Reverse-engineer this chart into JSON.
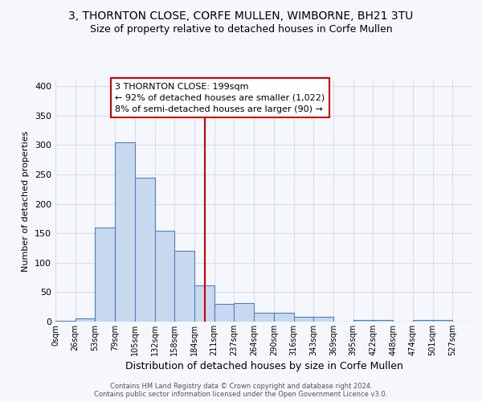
{
  "title_line1": "3, THORNTON CLOSE, CORFE MULLEN, WIMBORNE, BH21 3TU",
  "title_line2": "Size of property relative to detached houses in Corfe Mullen",
  "xlabel": "Distribution of detached houses by size in Corfe Mullen",
  "ylabel": "Number of detached properties",
  "footer_line1": "Contains HM Land Registry data © Crown copyright and database right 2024.",
  "footer_line2": "Contains public sector information licensed under the Open Government Licence v3.0.",
  "bin_labels": [
    "0sqm",
    "26sqm",
    "53sqm",
    "79sqm",
    "105sqm",
    "132sqm",
    "158sqm",
    "184sqm",
    "211sqm",
    "237sqm",
    "264sqm",
    "290sqm",
    "316sqm",
    "343sqm",
    "369sqm",
    "395sqm",
    "422sqm",
    "448sqm",
    "474sqm",
    "501sqm",
    "527sqm"
  ],
  "bar_values": [
    2,
    5,
    160,
    305,
    244,
    155,
    120,
    62,
    30,
    32,
    15,
    15,
    8,
    8,
    0,
    3,
    3,
    0,
    3,
    3,
    0
  ],
  "bar_color": "#c8d8ef",
  "bar_edge_color": "#4f7fbe",
  "vline_color": "#cc0000",
  "annotation_line1": "3 THORNTON CLOSE: 199sqm",
  "annotation_line2": "← 92% of detached houses are smaller (1,022)",
  "annotation_line3": "8% of semi-detached houses are larger (90) →",
  "annotation_box_facecolor": "#ffffff",
  "annotation_box_edgecolor": "#cc0000",
  "ylim": [
    0,
    410
  ],
  "yticks": [
    0,
    50,
    100,
    150,
    200,
    250,
    300,
    350,
    400
  ],
  "bg_color": "#f5f7fc",
  "plot_bg_color": "#f5f7fc",
  "grid_color": "#d8dde8",
  "property_sqm": 199,
  "bin_step": 26.5,
  "n_bins": 21,
  "title_fontsize": 10,
  "subtitle_fontsize": 9,
  "ylabel_fontsize": 8,
  "xlabel_fontsize": 9,
  "tick_fontsize": 7,
  "ytick_fontsize": 8,
  "footer_fontsize": 6,
  "annot_fontsize": 8
}
